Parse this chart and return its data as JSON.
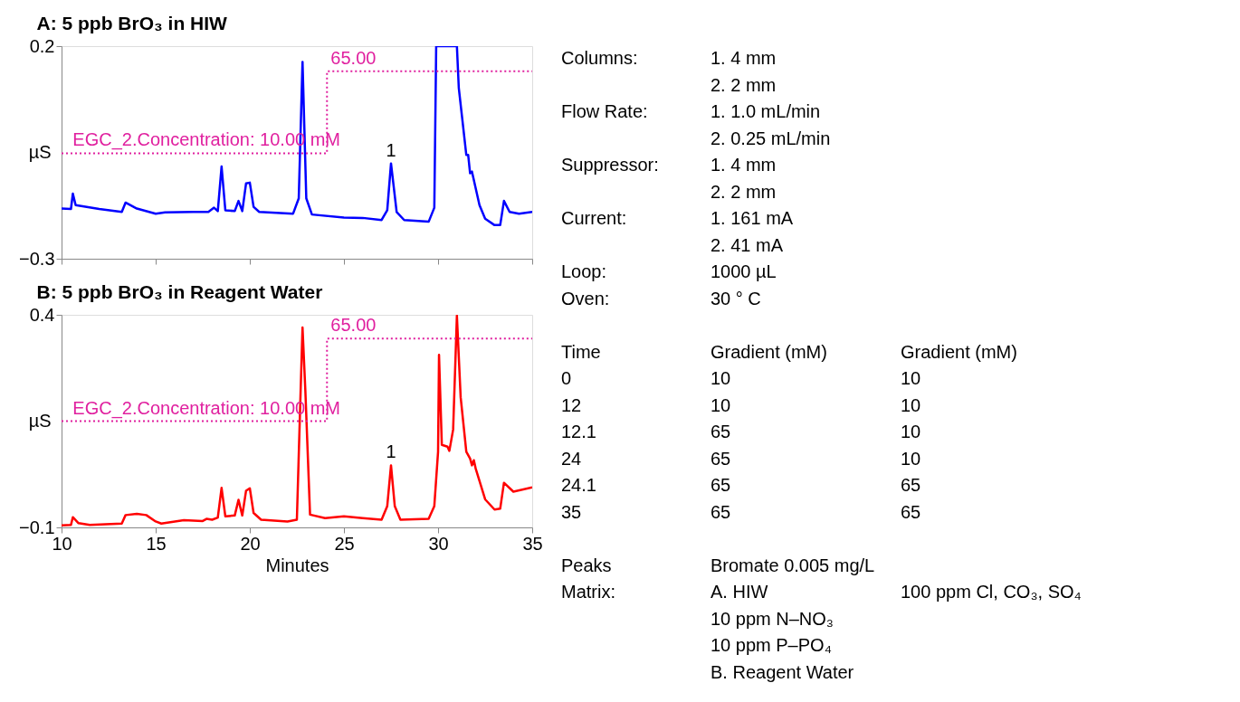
{
  "chart_data": [
    {
      "type": "line",
      "title": "A: 5 ppb BrO₃ in HIW",
      "ylabel": "µS",
      "xlim": [
        10,
        35
      ],
      "xticks": [
        10,
        15,
        20,
        25,
        30,
        35
      ],
      "ylim": [
        -0.3,
        0.2
      ],
      "yticks": [
        -0.3,
        0.2
      ],
      "tick_labels": "y",
      "grid": false,
      "series": [
        {
          "type": "line",
          "color": "#0000ff",
          "x": [
            10,
            10.5,
            10.6,
            10.75,
            12,
            13.2,
            13.4,
            14,
            15,
            15.5,
            17,
            17.8,
            18.1,
            18.3,
            18.5,
            18.7,
            19.2,
            19.4,
            19.6,
            19.8,
            20.0,
            20.2,
            20.5,
            22.3,
            22.6,
            22.8,
            23.0,
            23.3,
            25,
            26,
            27,
            27.3,
            27.5,
            27.8,
            28.2,
            29.5,
            29.8,
            29.9,
            31.0,
            31.1,
            31.5,
            31.6,
            31.7,
            31.8,
            32.2,
            32.5,
            33.0,
            33.3,
            33.5,
            33.8,
            34.3,
            35
          ],
          "values": [
            -0.182,
            -0.183,
            -0.147,
            -0.174,
            -0.183,
            -0.19,
            -0.168,
            -0.182,
            -0.194,
            -0.191,
            -0.19,
            -0.19,
            -0.18,
            -0.188,
            -0.083,
            -0.186,
            -0.188,
            -0.164,
            -0.188,
            -0.123,
            -0.121,
            -0.178,
            -0.19,
            -0.194,
            -0.158,
            0.163,
            -0.158,
            -0.196,
            -0.203,
            -0.204,
            -0.209,
            -0.186,
            -0.076,
            -0.19,
            -0.209,
            -0.213,
            -0.18,
            0.2,
            0.2,
            0.102,
            -0.056,
            -0.056,
            -0.099,
            -0.095,
            -0.174,
            -0.206,
            -0.221,
            -0.221,
            -0.164,
            -0.19,
            -0.194,
            -0.19
          ]
        },
        {
          "type": "step",
          "color": "#e0209f",
          "line_style": "dotted",
          "x": [
            10,
            24.1,
            35
          ],
          "values": [
            -0.052,
            0.141,
            0.141
          ]
        }
      ],
      "annotations": [
        {
          "text": "EGC_2.Concentration: 10.00 mM",
          "x": 17.7,
          "y": -0.052
        },
        {
          "text": "65.00",
          "x": 25.5,
          "y": 0.141
        },
        {
          "text": "1",
          "x": 27.5,
          "y": -0.076
        }
      ]
    },
    {
      "type": "line",
      "title": "B: 5 ppb BrO₃ in Reagent Water",
      "xlabel": "Minutes",
      "ylabel": "µS",
      "xlim": [
        10,
        35
      ],
      "xticks": [
        10,
        15,
        20,
        25,
        30,
        35
      ],
      "ylim": [
        -0.1,
        0.4
      ],
      "yticks": [
        -0.1,
        0.4
      ],
      "grid": false,
      "series": [
        {
          "type": "line",
          "color": "#ff0000",
          "x": [
            10,
            10.5,
            10.6,
            10.9,
            11.5,
            13.2,
            13.4,
            14,
            14.5,
            15,
            15.3,
            16.5,
            17.5,
            17.7,
            18.0,
            18.3,
            18.5,
            18.7,
            19.2,
            19.4,
            19.6,
            19.8,
            20.0,
            20.2,
            20.6,
            22.0,
            22.5,
            22.7,
            22.8,
            22.95,
            23.2,
            24,
            25,
            26,
            27,
            27.3,
            27.5,
            27.7,
            28,
            29.5,
            29.8,
            30.0,
            30.05,
            30.2,
            30.5,
            30.6,
            30.8,
            31.0,
            31.2,
            31.5,
            31.7,
            31.8,
            31.9,
            32.0,
            32.5,
            33.0,
            33.3,
            33.5,
            34,
            35
          ],
          "values": [
            -0.095,
            -0.094,
            -0.076,
            -0.09,
            -0.094,
            -0.091,
            -0.071,
            -0.068,
            -0.071,
            -0.086,
            -0.091,
            -0.083,
            -0.085,
            -0.08,
            -0.082,
            -0.077,
            -0.007,
            -0.074,
            -0.072,
            -0.035,
            -0.072,
            -0.014,
            -0.008,
            -0.066,
            -0.082,
            -0.086,
            -0.082,
            0.222,
            0.37,
            0.222,
            -0.07,
            -0.078,
            -0.074,
            -0.078,
            -0.082,
            -0.05,
            0.046,
            -0.05,
            -0.082,
            -0.08,
            -0.05,
            0.078,
            0.306,
            0.094,
            0.09,
            0.08,
            0.13,
            0.398,
            0.206,
            0.078,
            0.062,
            0.046,
            0.058,
            0.038,
            -0.034,
            -0.058,
            -0.056,
            0.005,
            -0.016,
            -0.006
          ]
        },
        {
          "type": "step",
          "color": "#e0209f",
          "line_style": "dotted",
          "x": [
            10,
            24.1,
            35
          ],
          "values": [
            0.15,
            0.344,
            0.344
          ]
        }
      ],
      "annotations": [
        {
          "text": "EGC_2.Concentration: 10.00 mM",
          "x": 17.7,
          "y": 0.15
        },
        {
          "text": "65.00",
          "x": 25.5,
          "y": 0.344
        },
        {
          "text": "1",
          "x": 27.5,
          "y": 0.046
        }
      ]
    },
    {
      "type": "other",
      "annotations": [
        "Columns:",
        "1. 4 mm",
        "2. 2 mm",
        "Flow Rate:",
        "1. 1.0 mL/min",
        "2. 0.25 mL/min",
        "Suppressor:",
        "1. 4 mm",
        "2. 2 mm",
        "Current:",
        "1. 161 mA",
        "2. 41 mA",
        "Loop:",
        "1000 µL",
        "Oven:",
        "30 °  C",
        "Time",
        "Gradient (mM)",
        "Gradient (mM)",
        "0",
        "10",
        "10",
        "12",
        "10",
        "10",
        "12.1",
        "65",
        "10",
        "24",
        "65",
        "10",
        "24.1",
        "65",
        "65",
        "35",
        "65",
        "65",
        "Peaks",
        "Bromate 0.005  mg/L",
        "Matrix:",
        "A. HIW",
        "100 ppm Cl, CO₃, SO₄",
        "10 ppm N–NO₃",
        "10 ppm P–PO₄",
        "B. Reagent Water"
      ]
    }
  ]
}
